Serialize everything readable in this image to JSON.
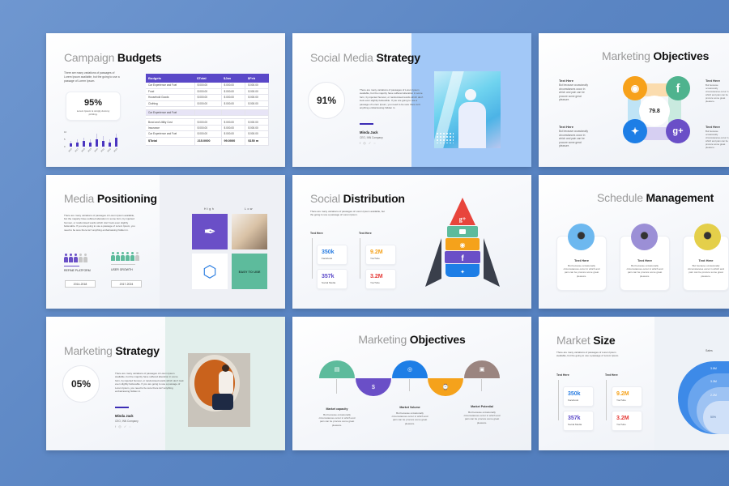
{
  "colors": {
    "background": "#5f89c6",
    "purple": "#5a48c8",
    "green": "#5dbb9c",
    "blue": "#2a7de1",
    "orange": "#f5a21b",
    "red": "#e53935",
    "brown": "#9b8580"
  },
  "lorem_short": "There are many variations of passages of Lorem Ipsum available, but the going to use a passage of Lorem Ipsum.",
  "lorem_long": "There are many variations of passages of Lorem Ipsum available, but the majority have suffered alteration in some form, by injected humour, or randomised words which don't look even slightly believable. If you are going to use a passage of Lorem Ipsum, you need to be sure there isn't anything embarrassing hidden in.",
  "lorem_card": "But because occasionally circumstances occur in which and pain can be procure some great pleasure.",
  "slides": {
    "campaign": {
      "title_light": "Campaign ",
      "title_bold": "Budgets",
      "stat": "95%",
      "stat_caption": "Lorem Ipsum is simply dummy printing.",
      "table": {
        "headers": [
          "Budgets",
          "$Total",
          "$Jan",
          "$Feb"
        ],
        "rows": [
          [
            "Car Experience and Fuel",
            "$ 000.00",
            "$ 000.00",
            "$ 000.00"
          ],
          [
            "Food",
            "$ 000.00",
            "$ 000.00",
            "$ 000.00"
          ],
          [
            "Household Goods",
            "$ 000.00",
            "$ 000.00",
            "$ 000.00"
          ],
          [
            "Clothing",
            "$ 000.00",
            "$ 000.00",
            "$ 000.00"
          ]
        ],
        "section": "Car Experience and Fuel",
        "rows2": [
          [
            "Bond and Utility Cost",
            "$ 000.00",
            "$ 000.00",
            "$ 000.00"
          ],
          [
            "Insurance",
            "$ 000.00",
            "$ 000.00",
            "$ 000.00"
          ],
          [
            "Car Experience and Fuel",
            "$ 000.00",
            "$ 000.00",
            "$ 000.00"
          ]
        ],
        "total": [
          "$Total",
          "215.0000",
          "99.0000",
          "$150 m"
        ]
      },
      "mini_chart": {
        "y_ticks": [
          "10",
          "5",
          "0"
        ],
        "x_labels": [
          "2016",
          "2017",
          "2018",
          "2019",
          "2020",
          "2021",
          "2022",
          "2023"
        ],
        "dark": [
          2,
          3,
          4,
          3,
          5,
          4,
          3,
          6
        ],
        "light": [
          4,
          5,
          6,
          5,
          9,
          7,
          5,
          9
        ]
      }
    },
    "social_media": {
      "title_light": "Social Media ",
      "title_bold": "Strategy",
      "stat": "91%",
      "name": "Minda Jack",
      "role": "CEO, INN Company"
    },
    "objectives_circle": {
      "title_light": "Marketing ",
      "title_bold": "Objectives",
      "center_value": "79.8",
      "text_here": "Text Here",
      "icons": [
        "rss-icon",
        "facebook-icon",
        "twitter-icon",
        "google-plus-icon"
      ]
    },
    "media_positioning": {
      "title_light": "Media ",
      "title_bold": "Positioning",
      "high": "High",
      "low": "Low",
      "easy": "EASY TO USE",
      "refine_label": "REFINE PLATFORM",
      "growth_label": "USER GROWTH",
      "refine_btn": "2014-2018",
      "growth_btn": "2017-2024",
      "refine_filled": 3,
      "refine_total": 5,
      "growth_filled": 5,
      "growth_total": 6
    },
    "social_distribution": {
      "title_light": "Social ",
      "title_bold": "Distribution",
      "text_here": "Text Here",
      "cards": [
        {
          "value": "350k",
          "label": "Facebook",
          "color": "#2a7de1"
        },
        {
          "value": "357k",
          "label": "Social Media",
          "color": "#5a48c8"
        },
        {
          "value": "9.2M",
          "label": "YouTube",
          "color": "#f5a21b"
        },
        {
          "value": "3.2M",
          "label": "YouTube",
          "color": "#e53935"
        }
      ]
    },
    "schedule": {
      "title_light": "Schedule ",
      "title_bold": "Management",
      "cards": [
        {
          "title": "Text Here"
        },
        {
          "title": "Text Here"
        },
        {
          "title": "Text Here"
        }
      ]
    },
    "marketing_strategy": {
      "title_light": "Marketing ",
      "title_bold": "Strategy",
      "stat": "05%",
      "name": "Minda Jack",
      "role": "CEO, INN Company"
    },
    "objectives_timeline": {
      "title_light": "Marketing ",
      "title_bold": "Objectives",
      "items": [
        {
          "title": "Market capacity"
        },
        {
          "title": "Market Volume"
        },
        {
          "title": "Market Potential"
        }
      ]
    },
    "market_size": {
      "title_light": "Market ",
      "title_bold": "Size",
      "text_here": "Text Here",
      "sales": "Sales",
      "rings": [
        "3.5M",
        "3.3M",
        "2.2M",
        "50%"
      ],
      "cards": [
        {
          "value": "350k",
          "label": "Facebook",
          "color": "#2a7de1"
        },
        {
          "value": "357k",
          "label": "Social Media",
          "color": "#5a48c8"
        },
        {
          "value": "9.2M",
          "label": "YouTube",
          "color": "#f5a21b"
        },
        {
          "value": "3.2M",
          "label": "YouTube",
          "color": "#e53935"
        }
      ]
    }
  }
}
